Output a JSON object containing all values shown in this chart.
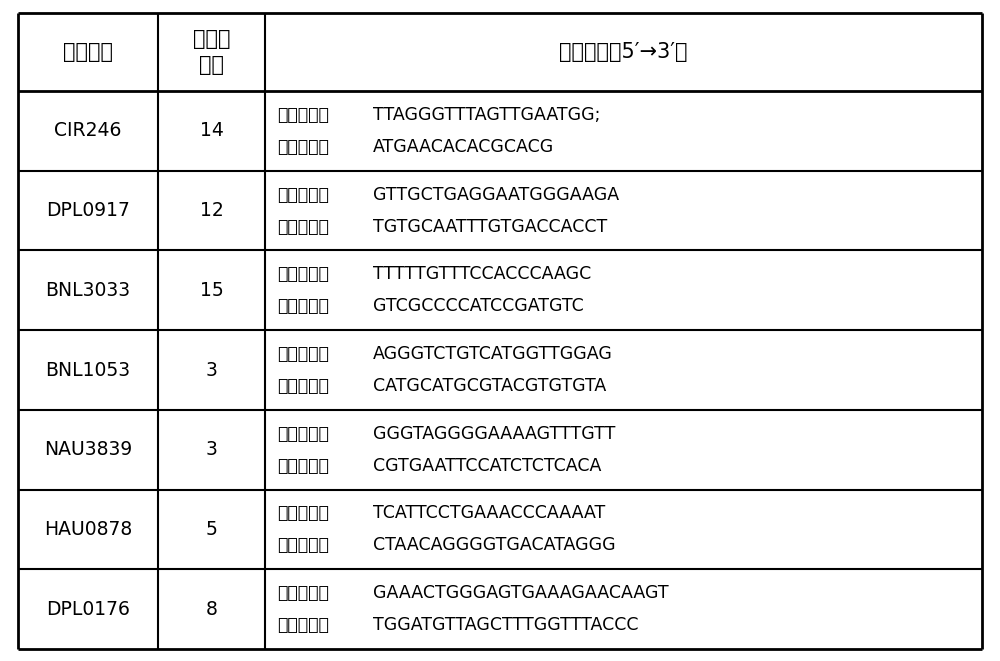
{
  "col_headers": [
    "引物名称",
    "染色体\n位置",
    "引物序列（5′→3′）"
  ],
  "rows": [
    {
      "name": "CIR246",
      "chrom": "14",
      "upstream_label": "上游引物：",
      "upstream_seq": "TTAGGGTTTAGTTGAATGG;",
      "downstream_label": "下游引物：",
      "downstream_seq": "ATGAACACACGCACG"
    },
    {
      "name": "DPL0917",
      "chrom": "12",
      "upstream_label": "上游引物：",
      "upstream_seq": "GTTGCTGAGGAATGGGAAGA",
      "downstream_label": "下游引物：",
      "downstream_seq": "TGTGCAATTTGTGACCACCT"
    },
    {
      "name": "BNL3033",
      "chrom": "15",
      "upstream_label": "上游引物：",
      "upstream_seq": "TTTTTGTTTCCACCCAAGC",
      "downstream_label": "下游引物：",
      "downstream_seq": "GTCGCCCCATCCGATGTC"
    },
    {
      "name": "BNL1053",
      "chrom": "3",
      "upstream_label": "上游引物：",
      "upstream_seq": "AGGGTCTGTCATGGTTGGAG",
      "downstream_label": "下游引物：",
      "downstream_seq": "CATGCATGCGTACGTGTGTA"
    },
    {
      "name": "NAU3839",
      "chrom": "3",
      "upstream_label": "上游引物：",
      "upstream_seq": "GGGTAGGGGAAAAGTTTGTT",
      "downstream_label": "下游引物：",
      "downstream_seq": "CGTGAATTCCATCTCTCACA"
    },
    {
      "name": "HAU0878",
      "chrom": "5",
      "upstream_label": "上游引物：",
      "upstream_seq": "TCATTCCTGAAACCCAAAAT",
      "downstream_label": "下游引物：",
      "downstream_seq": "CTAACAGGGGTGACATAGGG"
    },
    {
      "name": "DPL0176",
      "chrom": "8",
      "upstream_label": "上游引物：",
      "upstream_seq": "GAAACTGGGAGTGAAAGAACAAGT",
      "downstream_label": "下游引物：",
      "downstream_seq": "TGGATGTTAGCTTTGGTTTACCC"
    }
  ],
  "bg_color": "#ffffff",
  "line_color": "#000000",
  "text_color": "#000000",
  "header_fontsize": 15,
  "cell_fontsize": 13.5,
  "seq_fontsize": 12.5,
  "label_fontsize": 12.5
}
